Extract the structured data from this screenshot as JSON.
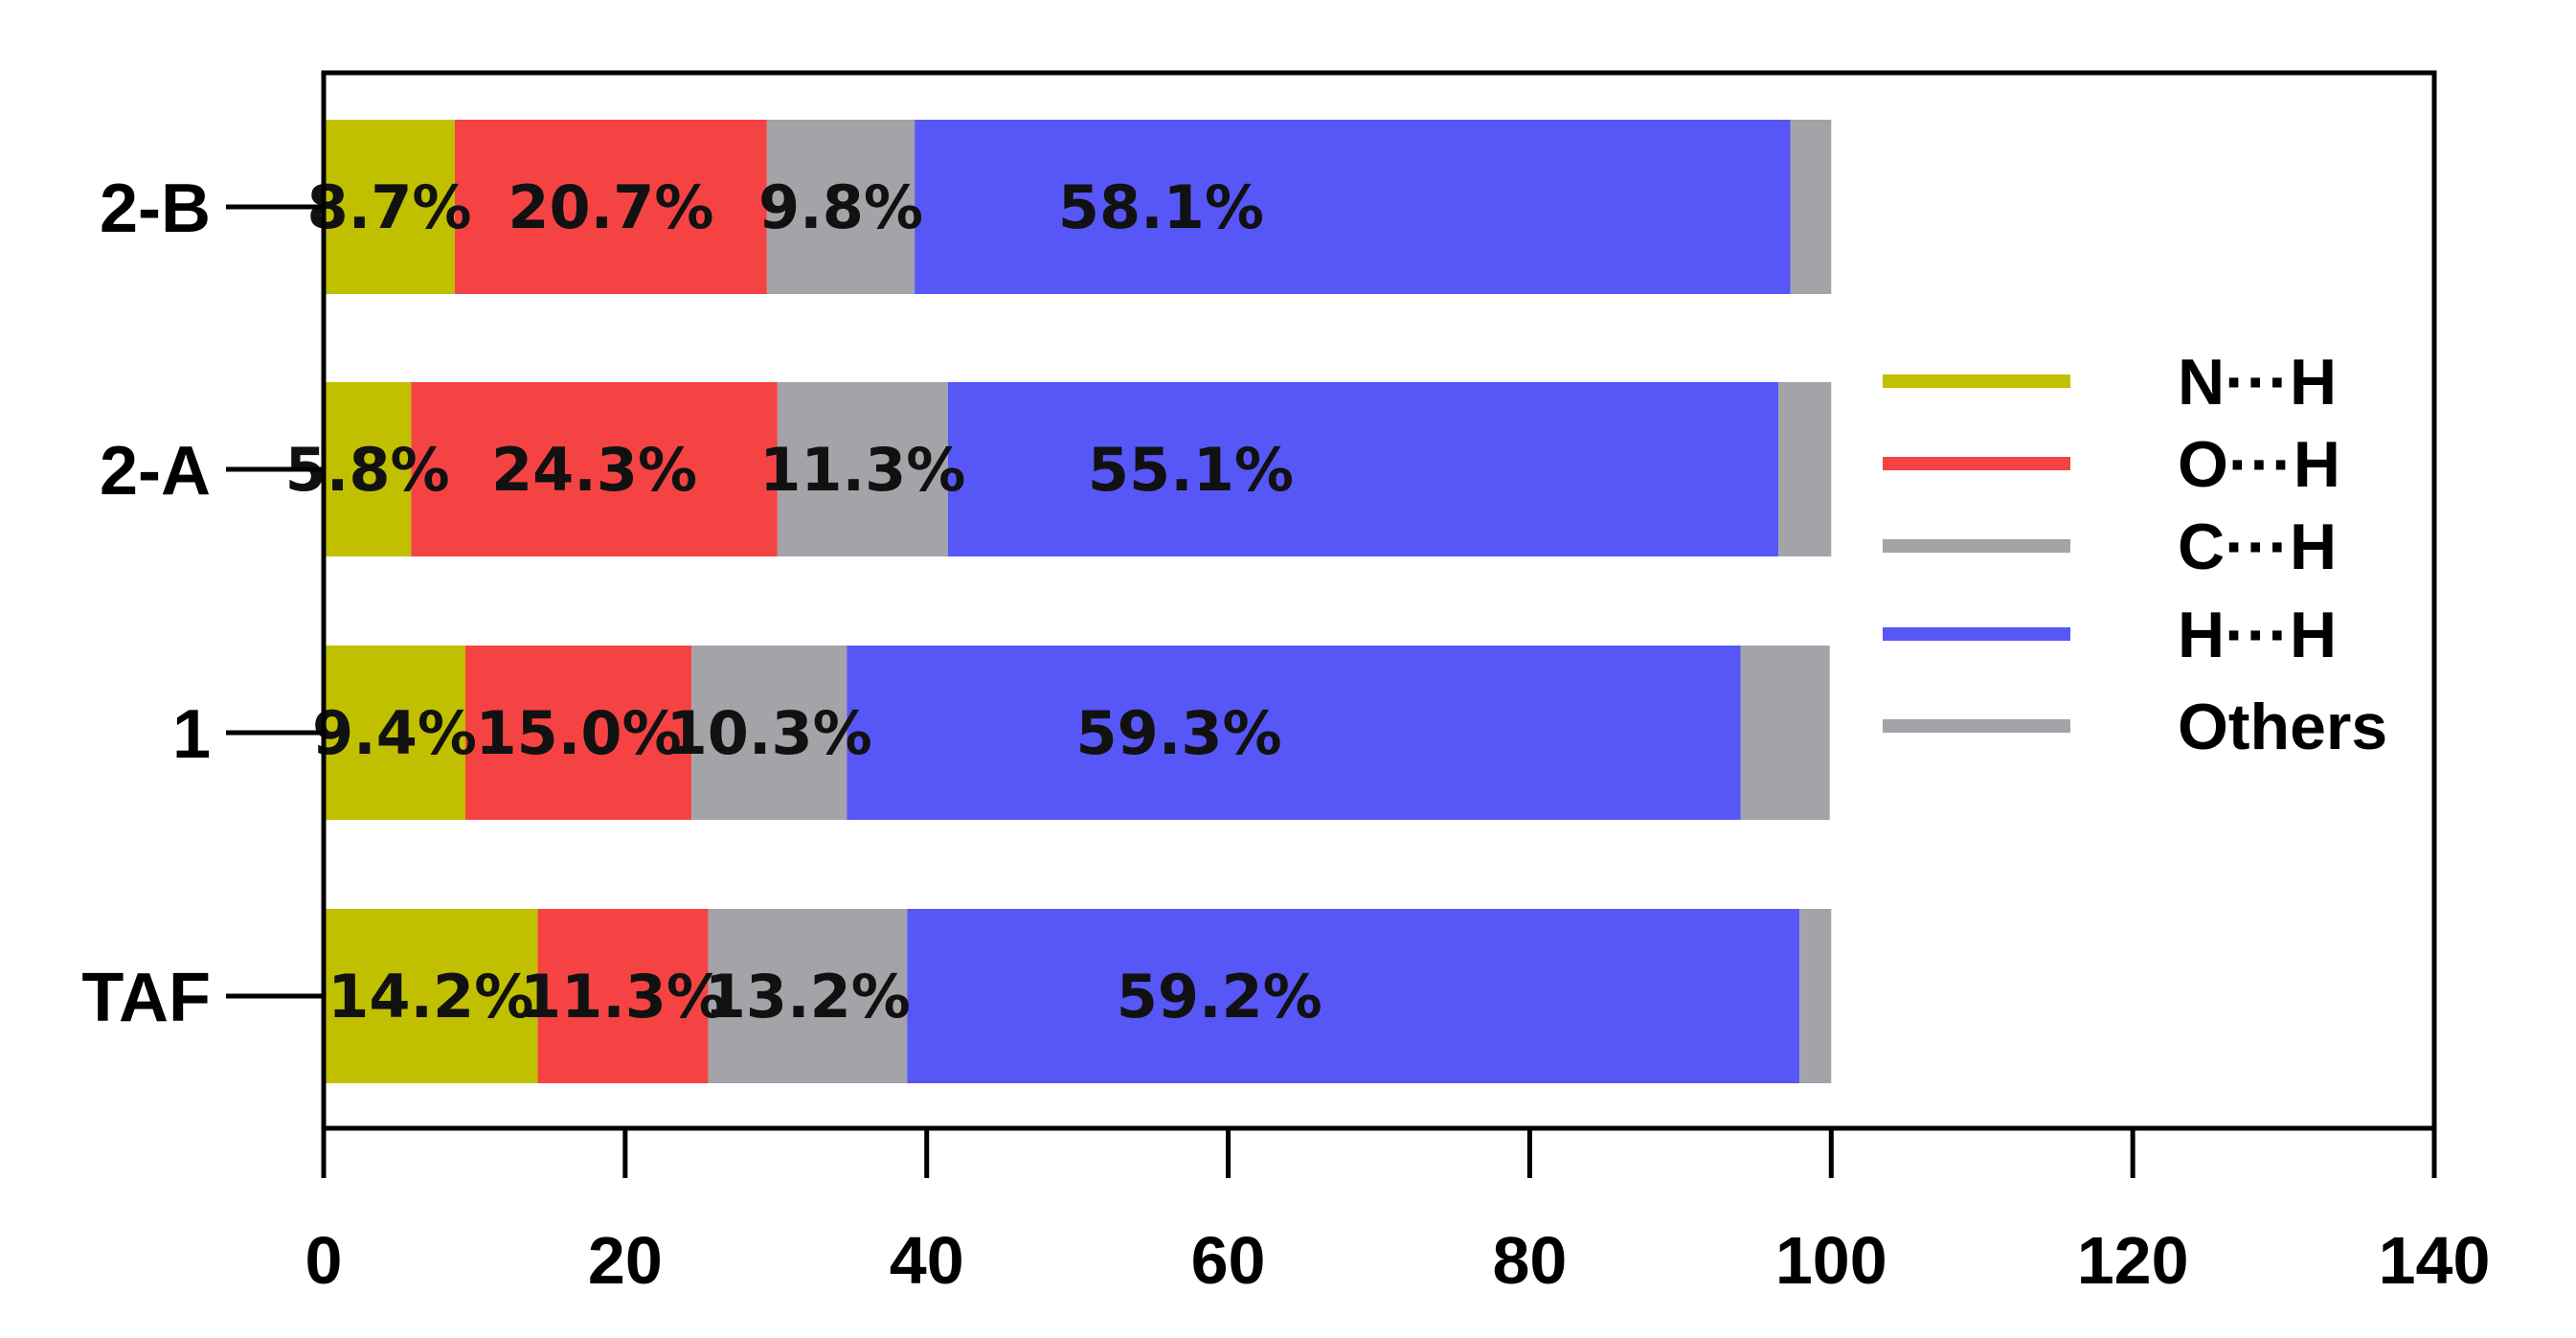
{
  "chart_data": {
    "type": "bar",
    "orientation": "horizontal",
    "stacked": true,
    "categories": [
      "2-B",
      "2-A",
      "1",
      "TAF"
    ],
    "series": [
      {
        "name": "N···H",
        "color": "#c0c000",
        "values": [
          8.7,
          5.8,
          9.4,
          14.2
        ],
        "labels": [
          "8.7%",
          "5.8%",
          "9.4%",
          "14.2%"
        ]
      },
      {
        "name": "O···H",
        "color": "#f54343",
        "values": [
          20.7,
          24.3,
          15.0,
          11.3
        ],
        "labels": [
          "20.7%",
          "24.3%",
          "15.0%",
          "11.3%"
        ]
      },
      {
        "name": "C···H",
        "color": "#a3a3a8",
        "values": [
          9.8,
          11.3,
          10.3,
          13.2
        ],
        "labels": [
          "9.8%",
          "11.3%",
          "10.3%",
          "13.2%"
        ]
      },
      {
        "name": "H···H",
        "color": "#5757f7",
        "values": [
          58.1,
          55.1,
          59.3,
          59.2
        ],
        "labels": [
          "58.1%",
          "55.1%",
          "59.3%",
          "59.2%"
        ]
      },
      {
        "name": "Others",
        "color": "#a3a3a8",
        "values": [
          2.7,
          3.5,
          5.9,
          2.1
        ],
        "labels": [
          "",
          "",
          "",
          ""
        ]
      }
    ],
    "xlim": [
      0,
      140
    ],
    "xticks": [
      "0",
      "20",
      "40",
      "60",
      "80",
      "100",
      "120",
      "140"
    ],
    "xlabel": "",
    "ylabel": "",
    "title": "",
    "grid": false,
    "legend_position": "right"
  }
}
